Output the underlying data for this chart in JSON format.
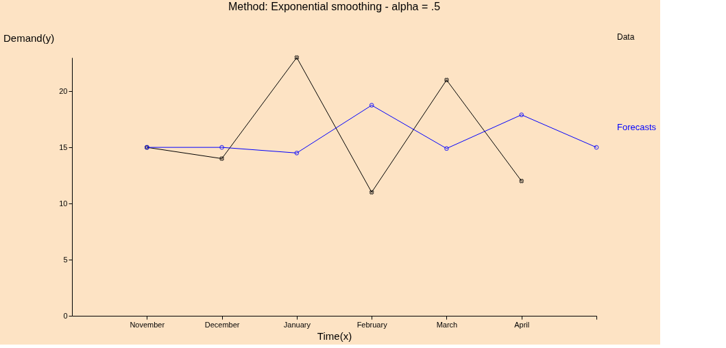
{
  "chart_data": {
    "type": "line",
    "title": "Method: Exponential smoothing - alpha = .5",
    "xlabel": "Time(x)",
    "ylabel": "Demand(y)",
    "categories": [
      "November",
      "December",
      "January",
      "February",
      "March",
      "April",
      null
    ],
    "series": [
      {
        "name": "Data",
        "color": "#000000",
        "marker": "cross",
        "values": [
          15,
          14,
          23,
          11,
          21,
          12,
          null
        ]
      },
      {
        "name": "Forecasts",
        "color": "#0000ff",
        "marker": "circle",
        "values": [
          15,
          15,
          14.5,
          18.75,
          14.9,
          17.9,
          15
        ]
      }
    ],
    "ylim": [
      0,
      23
    ],
    "yticks": [
      0,
      5,
      10,
      15,
      20
    ],
    "grid": false,
    "legend": "right"
  }
}
